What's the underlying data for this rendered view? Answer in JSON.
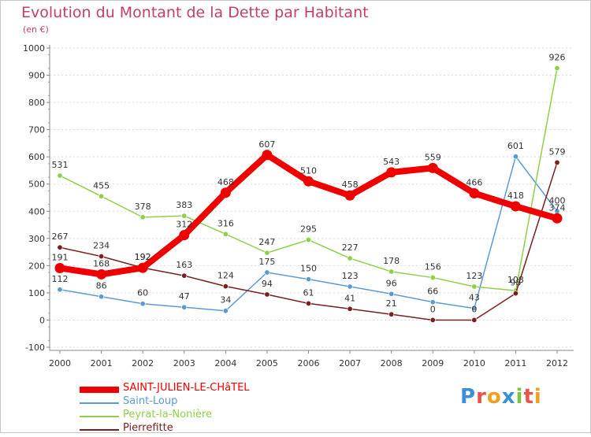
{
  "title": "Evolution du Montant de la Dette par Habitant",
  "subtitle": "(en €)",
  "logo": {
    "letters": [
      {
        "ch": "P",
        "color": "#3a8fd8"
      },
      {
        "ch": "r",
        "color": "#e7554a"
      },
      {
        "ch": "o",
        "color": "#f0a020"
      },
      {
        "ch": "x",
        "color": "#3a8fd8"
      },
      {
        "ch": "i",
        "color": "#7cc243"
      },
      {
        "ch": "t",
        "color": "#e7554a"
      },
      {
        "ch": "i",
        "color": "#f0a020"
      }
    ]
  },
  "chart_data": {
    "type": "line",
    "title": "Evolution du Montant de la Dette par Habitant",
    "subtitle": "(en €)",
    "x": [
      "2000",
      "2001",
      "2002",
      "2003",
      "2004",
      "2005",
      "2006",
      "2007",
      "2008",
      "2009",
      "2010",
      "2011",
      "2012"
    ],
    "y_ticks": [
      "-100",
      "0",
      "100",
      "200",
      "300",
      "400",
      "500",
      "600",
      "700",
      "800",
      "900",
      "1000"
    ],
    "ylim": [
      -100,
      1000
    ],
    "grid": "horizontal",
    "legend_position": "bottom-left",
    "series": [
      {
        "name": "SAINT-JULIEN-LE-CHâTEL",
        "color": "#ee0000",
        "values": [
          191,
          168,
          192,
          312,
          468,
          607,
          510,
          458,
          543,
          559,
          466,
          418,
          374
        ],
        "labels": [
          "191",
          "168",
          "192",
          "312",
          "468",
          "607",
          "510",
          "458",
          "543",
          "559",
          "466",
          "418",
          "374"
        ]
      },
      {
        "name": "Saint-Loup",
        "color": "#5b9bd5",
        "values": [
          112,
          86,
          60,
          47,
          34,
          175,
          150,
          123,
          96,
          66,
          43,
          601,
          400
        ],
        "labels": [
          "112",
          "86",
          "60",
          "47",
          "34",
          "175",
          "150",
          "123",
          "96",
          "66",
          "43",
          "601",
          "400"
        ]
      },
      {
        "name": "Peyrat-la-Nonière",
        "color": "#8ed148",
        "values": [
          531,
          455,
          378,
          383,
          316,
          247,
          295,
          227,
          178,
          156,
          123,
          108,
          926
        ],
        "labels": [
          "531",
          "455",
          "378",
          "383",
          "316",
          "247",
          "295",
          "227",
          "178",
          "156",
          "123",
          "108",
          "926"
        ]
      },
      {
        "name": "Pierrefitte",
        "color": "#7a1f1f",
        "values": [
          267,
          234,
          192,
          163,
          124,
          94,
          61,
          41,
          21,
          0,
          0,
          98,
          579
        ],
        "labels": [
          "267",
          "234",
          "192",
          "163",
          "124",
          "94",
          "61",
          "41",
          "21",
          "0",
          "0",
          "98",
          "579"
        ]
      }
    ]
  }
}
